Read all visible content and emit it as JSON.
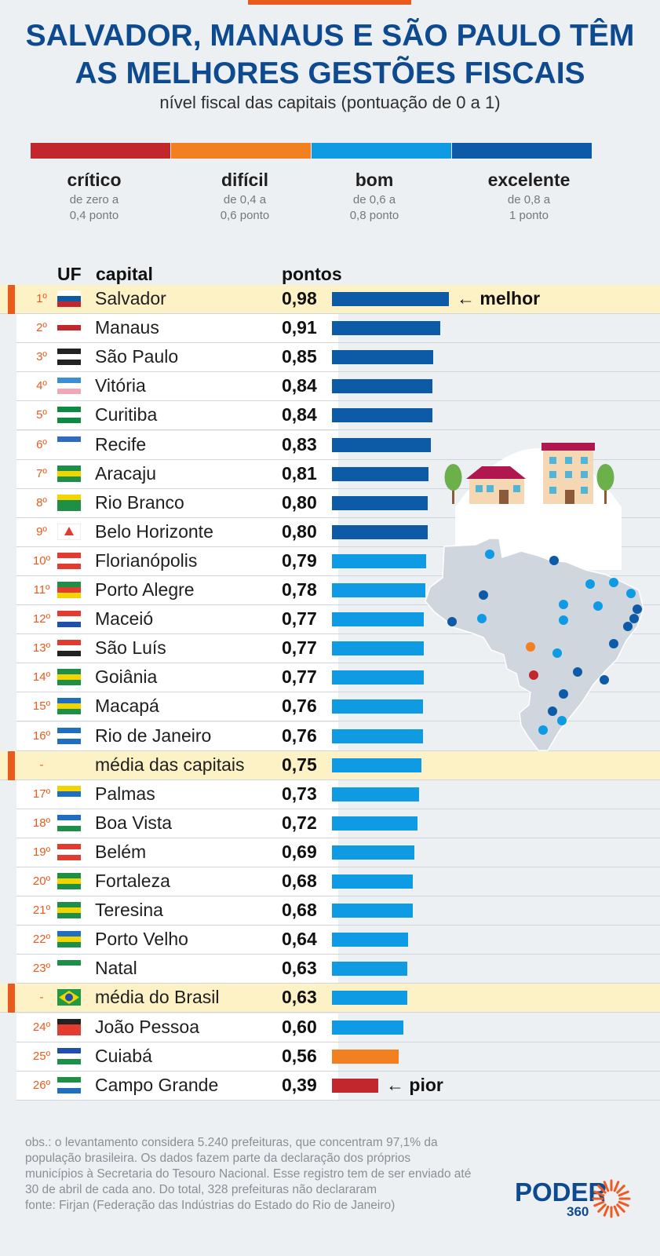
{
  "title_lines": [
    "SALVADOR, MANAUS E SÃO PAULO TÊM",
    "AS MELHORES GESTÕES FISCAIS"
  ],
  "subtitle": "nível fiscal das capitais (pontuação de 0 a 1)",
  "scale": [
    {
      "name": "crítico",
      "range1": "de zero a",
      "range2": "0,4 ponto",
      "color": "#c1272d"
    },
    {
      "name": "difícil",
      "range1": "de 0,4 a",
      "range2": "0,6 ponto",
      "color": "#f38020"
    },
    {
      "name": "bom",
      "range1": "de 0,6 a",
      "range2": "0,8 ponto",
      "color": "#0f9be3"
    },
    {
      "name": "excelente",
      "range1": "de 0,8 a",
      "range2": "1 ponto",
      "color": "#0d5aa7"
    }
  ],
  "headers": {
    "uf": "UF",
    "capital": "capital",
    "points": "pontos"
  },
  "chart_data": {
    "type": "bar",
    "orientation": "horizontal",
    "xlim": [
      0,
      1
    ],
    "rows": [
      {
        "rank": "1º",
        "capital": "Salvador",
        "value": 0.98,
        "label": "0,98",
        "note": "← melhor",
        "highlight": true,
        "flag": "ba"
      },
      {
        "rank": "2º",
        "capital": "Manaus",
        "value": 0.91,
        "label": "0,91",
        "flag": "am"
      },
      {
        "rank": "3º",
        "capital": "São Paulo",
        "value": 0.85,
        "label": "0,85",
        "flag": "sp"
      },
      {
        "rank": "4º",
        "capital": "Vitória",
        "value": 0.84,
        "label": "0,84",
        "flag": "es"
      },
      {
        "rank": "5º",
        "capital": "Curitiba",
        "value": 0.84,
        "label": "0,84",
        "flag": "pr"
      },
      {
        "rank": "6º",
        "capital": "Recife",
        "value": 0.83,
        "label": "0,83",
        "flag": "pe"
      },
      {
        "rank": "7º",
        "capital": "Aracaju",
        "value": 0.81,
        "label": "0,81",
        "flag": "se"
      },
      {
        "rank": "8º",
        "capital": "Rio Branco",
        "value": 0.8,
        "label": "0,80",
        "flag": "ac"
      },
      {
        "rank": "9º",
        "capital": "Belo Horizonte",
        "value": 0.8,
        "label": "0,80",
        "flag": "mg"
      },
      {
        "rank": "10º",
        "capital": "Florianópolis",
        "value": 0.79,
        "label": "0,79",
        "flag": "sc"
      },
      {
        "rank": "11º",
        "capital": "Porto Alegre",
        "value": 0.78,
        "label": "0,78",
        "flag": "rs"
      },
      {
        "rank": "12º",
        "capital": "Maceió",
        "value": 0.77,
        "label": "0,77",
        "flag": "al"
      },
      {
        "rank": "13º",
        "capital": "São Luís",
        "value": 0.77,
        "label": "0,77",
        "flag": "ma"
      },
      {
        "rank": "14º",
        "capital": "Goiânia",
        "value": 0.77,
        "label": "0,77",
        "flag": "go"
      },
      {
        "rank": "15º",
        "capital": "Macapá",
        "value": 0.76,
        "label": "0,76",
        "flag": "ap"
      },
      {
        "rank": "16º",
        "capital": "Rio de Janeiro",
        "value": 0.76,
        "label": "0,76",
        "flag": "rj"
      },
      {
        "rank": "-",
        "capital": "média das capitais",
        "value": 0.75,
        "label": "0,75",
        "highlight": true,
        "flag": ""
      },
      {
        "rank": "17º",
        "capital": "Palmas",
        "value": 0.73,
        "label": "0,73",
        "flag": "to"
      },
      {
        "rank": "18º",
        "capital": "Boa Vista",
        "value": 0.72,
        "label": "0,72",
        "flag": "rr"
      },
      {
        "rank": "19º",
        "capital": "Belém",
        "value": 0.69,
        "label": "0,69",
        "flag": "pa"
      },
      {
        "rank": "20º",
        "capital": "Fortaleza",
        "value": 0.68,
        "label": "0,68",
        "flag": "ce"
      },
      {
        "rank": "21º",
        "capital": "Teresina",
        "value": 0.68,
        "label": "0,68",
        "flag": "pi"
      },
      {
        "rank": "22º",
        "capital": "Porto Velho",
        "value": 0.64,
        "label": "0,64",
        "flag": "ro"
      },
      {
        "rank": "23º",
        "capital": "Natal",
        "value": 0.63,
        "label": "0,63",
        "flag": "rn"
      },
      {
        "rank": "-",
        "capital": "média do Brasil",
        "value": 0.63,
        "label": "0,63",
        "highlight": true,
        "flag": "br"
      },
      {
        "rank": "24º",
        "capital": "João Pessoa",
        "value": 0.6,
        "label": "0,60",
        "flag": "pb"
      },
      {
        "rank": "25º",
        "capital": "Cuiabá",
        "value": 0.56,
        "label": "0,56",
        "flag": "mt"
      },
      {
        "rank": "26º",
        "capital": "Campo Grande",
        "value": 0.39,
        "label": "0,39",
        "note": "← pior",
        "flag": "ms"
      }
    ]
  },
  "footer_lines": [
    "obs.: o levantamento considera 5.240 prefeituras, que concentram 97,1% da",
    "população brasileira. Os dados fazem parte da declaração dos próprios",
    "municípios à Secretaria do Tesouro Nacional. Esse registro tem de ser enviado até",
    "30 de abril de cada ano. Do total, 328 prefeituras não declararam",
    "fonte: Firjan (Federação das Indústrias do Estado do Rio de Janeiro)"
  ],
  "logo": {
    "word": "PODER",
    "num": "360"
  }
}
